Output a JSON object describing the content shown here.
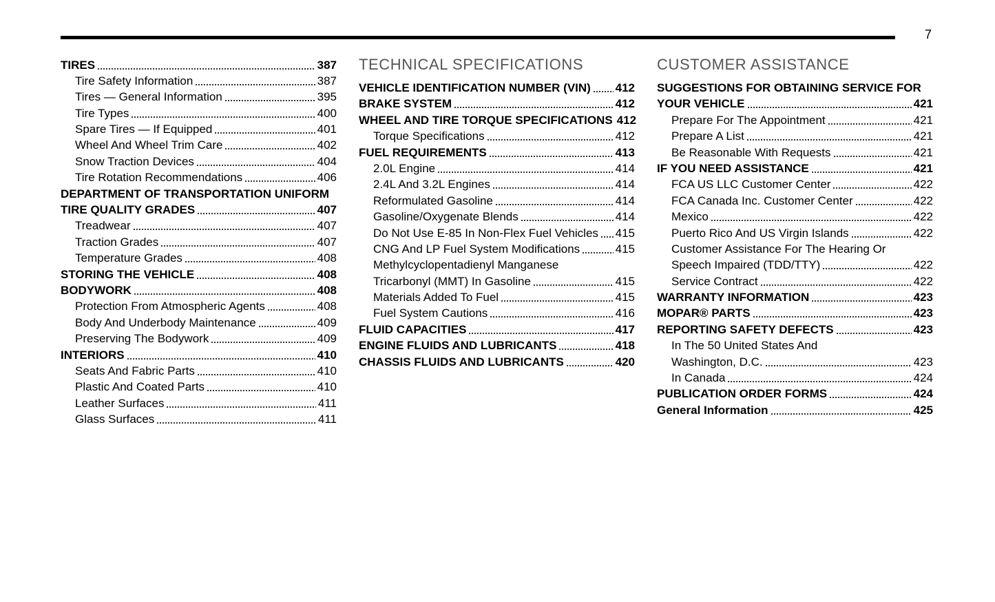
{
  "page_number": "7",
  "columns": [
    {
      "entries": [
        {
          "lines": [
            "TIRES"
          ],
          "page": "387",
          "level": 0
        },
        {
          "lines": [
            "Tire Safety Information"
          ],
          "page": "387",
          "level": 1
        },
        {
          "lines": [
            "Tires — General Information"
          ],
          "page": "395",
          "level": 1
        },
        {
          "lines": [
            "Tire Types"
          ],
          "page": "400",
          "level": 1
        },
        {
          "lines": [
            "Spare Tires — If Equipped"
          ],
          "page": "401",
          "level": 1
        },
        {
          "lines": [
            "Wheel And Wheel Trim Care"
          ],
          "page": "402",
          "level": 1
        },
        {
          "lines": [
            "Snow Traction Devices"
          ],
          "page": "404",
          "level": 1
        },
        {
          "lines": [
            "Tire Rotation Recommendations"
          ],
          "page": "406",
          "level": 1
        },
        {
          "lines": [
            "DEPARTMENT OF TRANSPORTATION UNIFORM",
            "TIRE QUALITY GRADES"
          ],
          "page": "407",
          "level": 0
        },
        {
          "lines": [
            "Treadwear"
          ],
          "page": "407",
          "level": 1
        },
        {
          "lines": [
            "Traction Grades"
          ],
          "page": "407",
          "level": 1
        },
        {
          "lines": [
            "Temperature Grades"
          ],
          "page": "408",
          "level": 1
        },
        {
          "lines": [
            "STORING THE VEHICLE"
          ],
          "page": "408",
          "level": 0
        },
        {
          "lines": [
            "BODYWORK"
          ],
          "page": "408",
          "level": 0
        },
        {
          "lines": [
            "Protection From Atmospheric Agents"
          ],
          "page": "408",
          "level": 1
        },
        {
          "lines": [
            "Body And Underbody Maintenance"
          ],
          "page": "409",
          "level": 1
        },
        {
          "lines": [
            "Preserving The Bodywork"
          ],
          "page": "409",
          "level": 1
        },
        {
          "lines": [
            "INTERIORS"
          ],
          "page": "410",
          "level": 0
        },
        {
          "lines": [
            "Seats And Fabric Parts"
          ],
          "page": "410",
          "level": 1
        },
        {
          "lines": [
            "Plastic And Coated Parts"
          ],
          "page": "410",
          "level": 1
        },
        {
          "lines": [
            "Leather Surfaces"
          ],
          "page": "411",
          "level": 1
        },
        {
          "lines": [
            "Glass Surfaces"
          ],
          "page": "411",
          "level": 1
        }
      ]
    },
    {
      "heading": "TECHNICAL SPECIFICATIONS",
      "entries": [
        {
          "lines": [
            "VEHICLE IDENTIFICATION NUMBER (VIN)"
          ],
          "page": "412",
          "level": 0
        },
        {
          "lines": [
            "BRAKE SYSTEM"
          ],
          "page": "412",
          "level": 0
        },
        {
          "lines": [
            "WHEEL AND TIRE TORQUE SPECIFICATIONS"
          ],
          "page": "412",
          "level": 0
        },
        {
          "lines": [
            "Torque Specifications"
          ],
          "page": "412",
          "level": 1
        },
        {
          "lines": [
            "FUEL REQUIREMENTS"
          ],
          "page": "413",
          "level": 0
        },
        {
          "lines": [
            "2.0L Engine"
          ],
          "page": "414",
          "level": 1
        },
        {
          "lines": [
            "2.4L And 3.2L Engines"
          ],
          "page": "414",
          "level": 1
        },
        {
          "lines": [
            "Reformulated Gasoline"
          ],
          "page": "414",
          "level": 1
        },
        {
          "lines": [
            "Gasoline/Oxygenate Blends"
          ],
          "page": "414",
          "level": 1
        },
        {
          "lines": [
            "Do Not Use E-85 In Non-Flex Fuel Vehicles"
          ],
          "page": "415",
          "level": 1
        },
        {
          "lines": [
            "CNG And LP Fuel System Modifications"
          ],
          "page": "415",
          "level": 1
        },
        {
          "lines": [
            "Methylcyclopentadienyl Manganese",
            "Tricarbonyl (MMT) In Gasoline"
          ],
          "page": "415",
          "level": 1
        },
        {
          "lines": [
            "Materials Added To Fuel"
          ],
          "page": "415",
          "level": 1
        },
        {
          "lines": [
            "Fuel System Cautions"
          ],
          "page": "416",
          "level": 1
        },
        {
          "lines": [
            "FLUID CAPACITIES"
          ],
          "page": "417",
          "level": 0
        },
        {
          "lines": [
            "ENGINE FLUIDS AND LUBRICANTS"
          ],
          "page": "418",
          "level": 0
        },
        {
          "lines": [
            "CHASSIS FLUIDS AND LUBRICANTS"
          ],
          "page": "420",
          "level": 0
        }
      ]
    },
    {
      "heading": "CUSTOMER ASSISTANCE",
      "entries": [
        {
          "lines": [
            "SUGGESTIONS FOR OBTAINING SERVICE FOR",
            "YOUR VEHICLE"
          ],
          "page": "421",
          "level": 0
        },
        {
          "lines": [
            "Prepare For The Appointment"
          ],
          "page": "421",
          "level": 1
        },
        {
          "lines": [
            "Prepare A List"
          ],
          "page": "421",
          "level": 1
        },
        {
          "lines": [
            "Be Reasonable With Requests"
          ],
          "page": "421",
          "level": 1
        },
        {
          "lines": [
            "IF YOU NEED ASSISTANCE"
          ],
          "page": "421",
          "level": 0
        },
        {
          "lines": [
            "FCA US LLC Customer Center"
          ],
          "page": "422",
          "level": 1
        },
        {
          "lines": [
            "FCA Canada Inc. Customer Center"
          ],
          "page": "422",
          "level": 1
        },
        {
          "lines": [
            "Mexico"
          ],
          "page": "422",
          "level": 1
        },
        {
          "lines": [
            "Puerto Rico And US Virgin Islands"
          ],
          "page": "422",
          "level": 1
        },
        {
          "lines": [
            "Customer Assistance For The Hearing Or",
            "Speech Impaired (TDD/TTY)"
          ],
          "page": "422",
          "level": 1
        },
        {
          "lines": [
            "Service Contract"
          ],
          "page": "422",
          "level": 1
        },
        {
          "lines": [
            "WARRANTY INFORMATION"
          ],
          "page": "423",
          "level": 0
        },
        {
          "lines": [
            "MOPAR® PARTS"
          ],
          "page": "423",
          "level": 0
        },
        {
          "lines": [
            "REPORTING SAFETY DEFECTS"
          ],
          "page": "423",
          "level": 0
        },
        {
          "lines": [
            "In The 50 United States And",
            "Washington, D.C."
          ],
          "page": "423",
          "level": 1
        },
        {
          "lines": [
            "In Canada"
          ],
          "page": "424",
          "level": 1
        },
        {
          "lines": [
            "PUBLICATION ORDER FORMS"
          ],
          "page": "424",
          "level": 0
        },
        {
          "lines": [
            "General Information"
          ],
          "page": "425",
          "level": 0
        }
      ]
    }
  ]
}
